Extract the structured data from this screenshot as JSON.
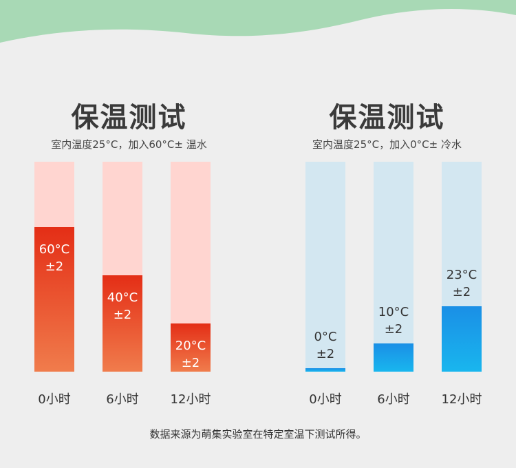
{
  "chart_data": [
    {
      "type": "bar",
      "title": "保温测试",
      "subtitle": "室内温度25°C，加入60°C± 温水",
      "categories": [
        "0小时",
        "6小时",
        "12小时"
      ],
      "values": [
        60,
        40,
        20
      ],
      "data_labels": [
        [
          "60°C",
          "±2"
        ],
        [
          "40°C",
          "±2"
        ],
        [
          "20°C",
          "±2"
        ]
      ],
      "ylim": [
        0,
        87
      ],
      "grid": false,
      "colors": {
        "track": "#ffd5d0",
        "fill_top": "#e42e16",
        "fill_bottom": "#f07c4c",
        "label": "#ffffff"
      }
    },
    {
      "type": "bar",
      "title": "保温测试",
      "subtitle": "室内温度25°C，加入0°C± 冷水",
      "categories": [
        "0小时",
        "6小时",
        "12小时"
      ],
      "values": [
        0,
        10,
        23
      ],
      "data_labels": [
        [
          "0°C",
          "±2"
        ],
        [
          "10°C",
          "±2"
        ],
        [
          "23°C",
          "±2"
        ]
      ],
      "ylim": [
        0,
        74
      ],
      "grid": false,
      "colors": {
        "track": "#d3e7f1",
        "fill_top": "#1a8fe6",
        "fill_bottom": "#19b6ee",
        "label": "#333333"
      }
    }
  ],
  "footnote": "数据来源为萌集实验室在特定室温下测试所得。",
  "colors": {
    "background": "#eeeeee",
    "wave": "#a8d9b5"
  }
}
